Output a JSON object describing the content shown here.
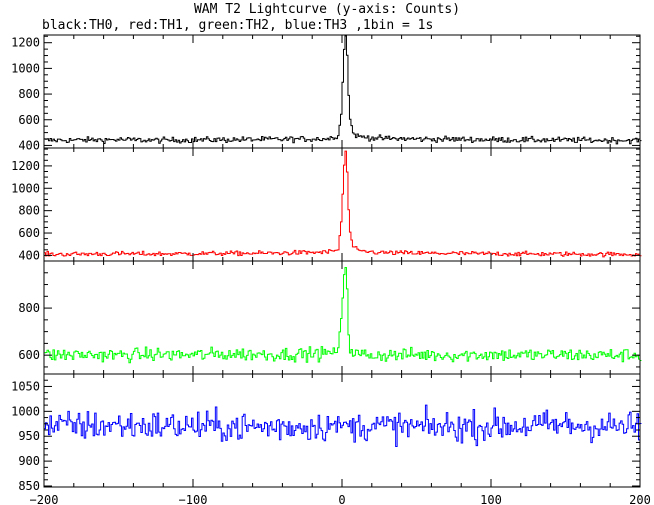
{
  "header": {
    "title": "WAM T2 Lightcurve (y-axis: Counts)",
    "subtitle": "black:TH0, red:TH1, green:TH2, blue:TH3 ,1bin = 1s"
  },
  "chart_data": [
    {
      "type": "line",
      "series": [
        {
          "color": "#000000",
          "values": [
            [
              -200,
              440
            ],
            [
              -175,
              442
            ],
            [
              -150,
              445
            ],
            [
              -125,
              440
            ],
            [
              -100,
              443
            ],
            [
              -75,
              445
            ],
            [
              -50,
              447
            ],
            [
              -25,
              450
            ],
            [
              -10,
              452
            ],
            [
              -3,
              470
            ],
            [
              -1,
              650
            ],
            [
              0,
              900
            ],
            [
              1,
              1150
            ],
            [
              2,
              1250
            ],
            [
              3,
              1100
            ],
            [
              4,
              800
            ],
            [
              5,
              600
            ],
            [
              7,
              500
            ],
            [
              10,
              470
            ],
            [
              25,
              455
            ],
            [
              50,
              450
            ],
            [
              75,
              448
            ],
            [
              100,
              445
            ],
            [
              125,
              443
            ],
            [
              150,
              442
            ],
            [
              175,
              440
            ],
            [
              200,
              440
            ]
          ]
        }
      ],
      "xlim": [
        -200,
        200
      ],
      "ylim": [
        380,
        1260
      ],
      "yticks": [
        400,
        600,
        800,
        1000,
        1200
      ],
      "noise": 22
    },
    {
      "type": "line",
      "series": [
        {
          "color": "#ff0000",
          "values": [
            [
              -200,
              410
            ],
            [
              -175,
              412
            ],
            [
              -150,
              415
            ],
            [
              -125,
              413
            ],
            [
              -100,
              416
            ],
            [
              -75,
              418
            ],
            [
              -50,
              420
            ],
            [
              -25,
              425
            ],
            [
              -10,
              430
            ],
            [
              -3,
              450
            ],
            [
              -1,
              700
            ],
            [
              0,
              950
            ],
            [
              1,
              1200
            ],
            [
              2,
              1330
            ],
            [
              3,
              1150
            ],
            [
              4,
              800
            ],
            [
              5,
              600
            ],
            [
              7,
              480
            ],
            [
              10,
              440
            ],
            [
              25,
              425
            ],
            [
              50,
              420
            ],
            [
              75,
              418
            ],
            [
              100,
              415
            ],
            [
              125,
              413
            ],
            [
              150,
              412
            ],
            [
              175,
              410
            ],
            [
              200,
              410
            ]
          ]
        }
      ],
      "xlim": [
        -200,
        200
      ],
      "ylim": [
        350,
        1360
      ],
      "yticks": [
        400,
        600,
        800,
        1000,
        1200
      ],
      "noise": 20
    },
    {
      "type": "line",
      "series": [
        {
          "color": "#00ff00",
          "values": [
            [
              -200,
              600
            ],
            [
              -175,
              602
            ],
            [
              -150,
              600
            ],
            [
              -125,
              603
            ],
            [
              -100,
              601
            ],
            [
              -75,
              605
            ],
            [
              -50,
              603
            ],
            [
              -25,
              605
            ],
            [
              -10,
              607
            ],
            [
              -3,
              620
            ],
            [
              -1,
              750
            ],
            [
              0,
              850
            ],
            [
              1,
              950
            ],
            [
              2,
              980
            ],
            [
              3,
              880
            ],
            [
              4,
              700
            ],
            [
              5,
              620
            ],
            [
              7,
              605
            ],
            [
              25,
              600
            ],
            [
              50,
              602
            ],
            [
              75,
              600
            ],
            [
              100,
              603
            ],
            [
              125,
              600
            ],
            [
              150,
              601
            ],
            [
              175,
              600
            ],
            [
              200,
              600
            ]
          ]
        }
      ],
      "xlim": [
        -200,
        200
      ],
      "ylim": [
        520,
        1000
      ],
      "yticks": [
        600,
        800
      ],
      "noise": 28
    },
    {
      "type": "line",
      "series": [
        {
          "color": "#0000ff",
          "values": [
            [
              -200,
              970
            ],
            [
              -150,
              972
            ],
            [
              -100,
              970
            ],
            [
              -50,
              968
            ],
            [
              0,
              972
            ],
            [
              50,
              968
            ],
            [
              100,
              970
            ],
            [
              150,
              972
            ],
            [
              200,
              968
            ]
          ]
        }
      ],
      "xlim": [
        -200,
        200
      ],
      "ylim": [
        848,
        1075
      ],
      "yticks": [
        850,
        900,
        950,
        1000,
        1050
      ],
      "xticks": [
        -200,
        -100,
        0,
        100,
        200
      ],
      "noise": 30
    }
  ]
}
